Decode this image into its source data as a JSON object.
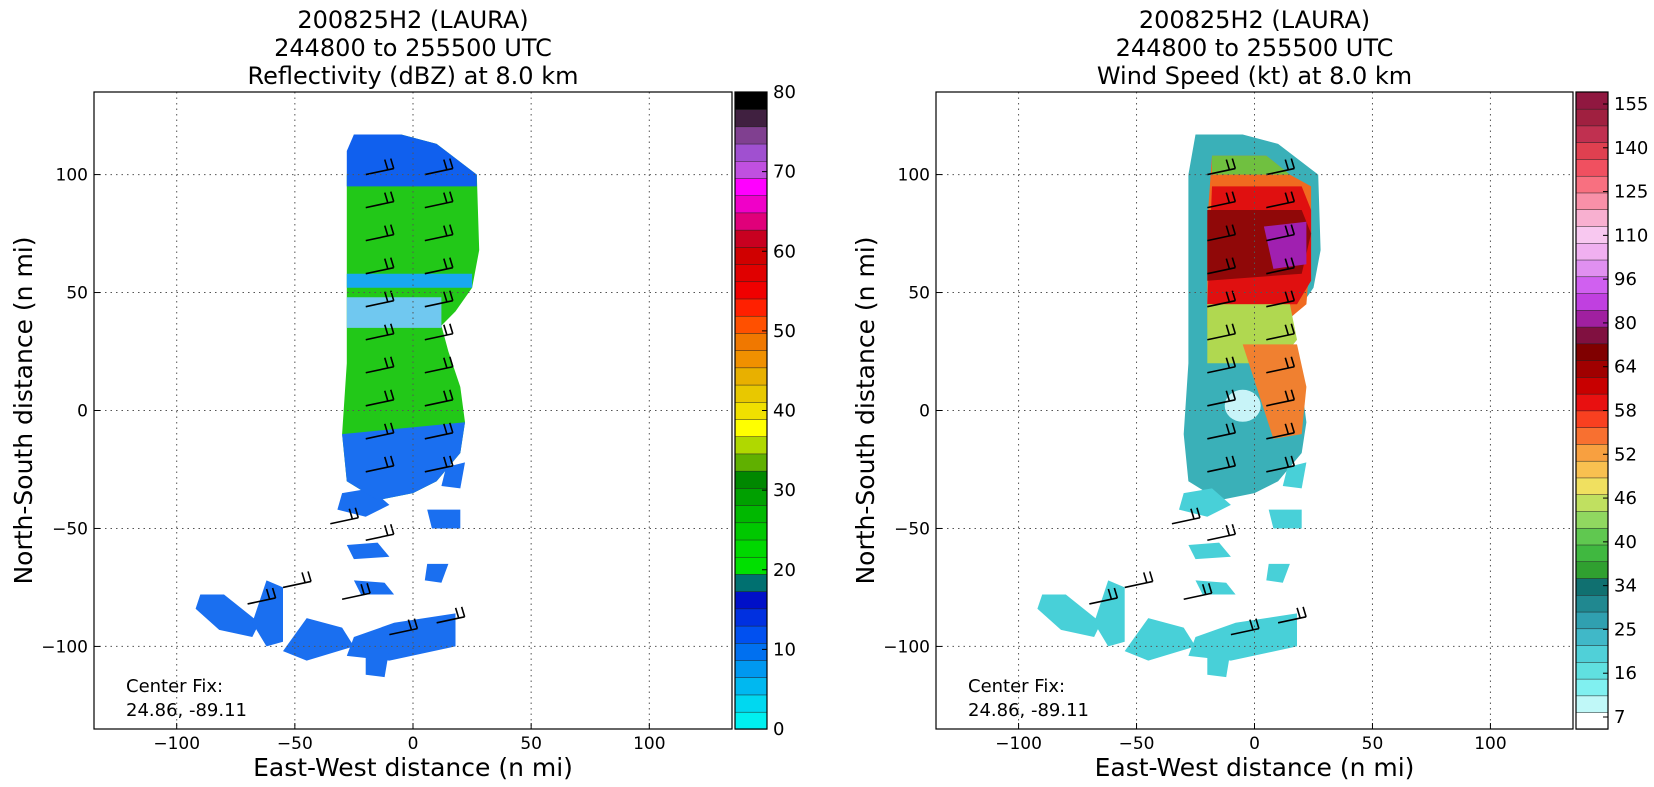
{
  "chart_data": [
    {
      "type": "heatmap",
      "title_lines": [
        "200825H2 (LAURA)",
        "244800 to 255500 UTC",
        "Reflectivity (dBZ) at 8.0 km"
      ],
      "xlabel": "East-West distance (n mi)",
      "ylabel": "North-South distance (n mi)",
      "xlim": [
        -135,
        135
      ],
      "ylim": [
        -135,
        135
      ],
      "xticks": [
        "−100",
        "−50",
        "0",
        "50",
        "100"
      ],
      "yticks": [
        "100",
        "50",
        "0",
        "−50",
        "−100"
      ],
      "grid": true,
      "annotation_lines": [
        "Center Fix:",
        "24.86, -89.11"
      ],
      "colorbar": {
        "range": [
          0,
          80
        ],
        "tick_labels": [
          "0",
          "10",
          "20",
          "30",
          "40",
          "50",
          "60",
          "70",
          "80"
        ],
        "colors": [
          "#00f0f0",
          "#00d8f0",
          "#00b8f0",
          "#0098f0",
          "#0070f0",
          "#0050f0",
          "#0030e0",
          "#0010c8",
          "#007070",
          "#00e000",
          "#00d800",
          "#00c800",
          "#00b800",
          "#00a000",
          "#008800",
          "#60b000",
          "#b0d800",
          "#ffff00",
          "#f0e000",
          "#e8c800",
          "#e8b000",
          "#f09000",
          "#f07800",
          "#ff5000",
          "#ff2000",
          "#f00000",
          "#e00000",
          "#d00000",
          "#c80020",
          "#e0007a",
          "#f000c8",
          "#ff00ff",
          "#c050e0",
          "#a050d0",
          "#804090",
          "#402040",
          "#000000"
        ]
      }
    },
    {
      "type": "heatmap",
      "title_lines": [
        "200825H2 (LAURA)",
        "244800 to 255500 UTC",
        "Wind Speed (kt) at 8.0 km"
      ],
      "xlabel": "East-West distance (n mi)",
      "ylabel": "North-South distance (n mi)",
      "xlim": [
        -135,
        135
      ],
      "ylim": [
        -135,
        135
      ],
      "xticks": [
        "−100",
        "−50",
        "0",
        "50",
        "100"
      ],
      "yticks": [
        "100",
        "50",
        "0",
        "−50",
        "−100"
      ],
      "grid": true,
      "annotation_lines": [
        "Center Fix:",
        "24.86, -89.11"
      ],
      "colorbar": {
        "tick_labels": [
          "7",
          "16",
          "25",
          "34",
          "40",
          "46",
          "52",
          "58",
          "64",
          "80",
          "96",
          "110",
          "125",
          "140",
          "155"
        ],
        "colors": [
          "#ffffff",
          "#c0f8f8",
          "#80f0f0",
          "#60e0e0",
          "#50d0d8",
          "#40b8c8",
          "#30a0b0",
          "#208890",
          "#107070",
          "#30a030",
          "#40b840",
          "#60c850",
          "#90d860",
          "#c0e060",
          "#f0e060",
          "#f8c050",
          "#f8a040",
          "#f87030",
          "#f84020",
          "#e81010",
          "#c80000",
          "#a00000",
          "#800000",
          "#801040",
          "#a020a0",
          "#c040e0",
          "#d060f0",
          "#e090f0",
          "#f0b0f0",
          "#f8c8f0",
          "#f8b0d0",
          "#f890a8",
          "#f87080",
          "#f05060",
          "#e04050",
          "#c03050",
          "#a02040",
          "#901840"
        ]
      }
    }
  ]
}
